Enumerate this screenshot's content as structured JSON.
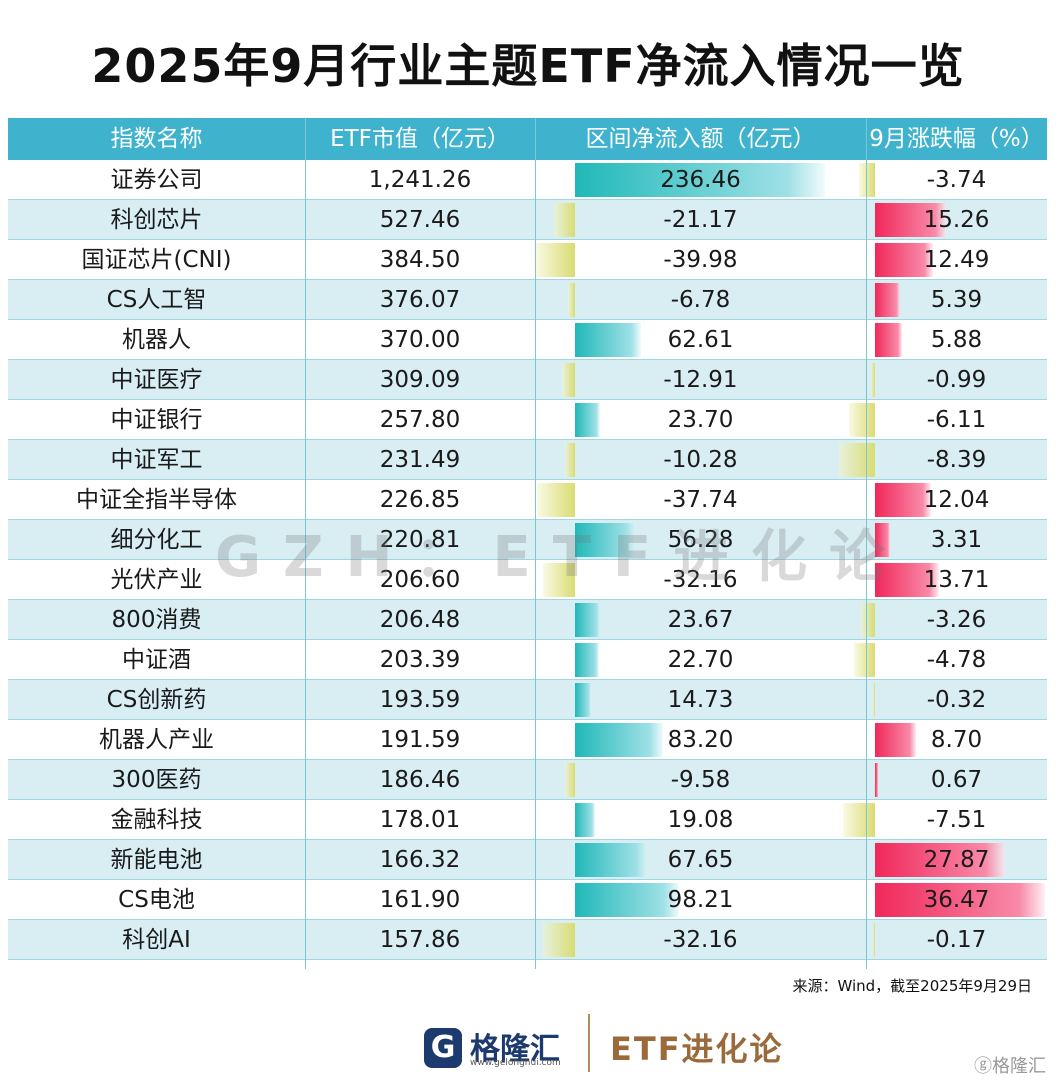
{
  "title": "2025年9月行业主题ETF净流入情况一览",
  "headers": {
    "name": "指数名称",
    "market_cap": "ETF市值（亿元）",
    "net_inflow": "区间净流入额（亿元）",
    "change": "9月涨跌幅（%）"
  },
  "rows": [
    {
      "name": "证券公司",
      "market_cap": "1,241.26",
      "net_inflow": 236.46,
      "change": -3.74
    },
    {
      "name": "科创芯片",
      "market_cap": "527.46",
      "net_inflow": -21.17,
      "change": 15.26
    },
    {
      "name": "国证芯片(CNI)",
      "market_cap": "384.50",
      "net_inflow": -39.98,
      "change": 12.49
    },
    {
      "name": "CS人工智",
      "market_cap": "376.07",
      "net_inflow": -6.78,
      "change": 5.39
    },
    {
      "name": "机器人",
      "market_cap": "370.00",
      "net_inflow": 62.61,
      "change": 5.88
    },
    {
      "name": "中证医疗",
      "market_cap": "309.09",
      "net_inflow": -12.91,
      "change": -0.99
    },
    {
      "name": "中证银行",
      "market_cap": "257.80",
      "net_inflow": 23.7,
      "change": -6.11
    },
    {
      "name": "中证军工",
      "market_cap": "231.49",
      "net_inflow": -10.28,
      "change": -8.39
    },
    {
      "name": "中证全指半导体",
      "market_cap": "226.85",
      "net_inflow": -37.74,
      "change": 12.04
    },
    {
      "name": "细分化工",
      "market_cap": "220.81",
      "net_inflow": 56.28,
      "change": 3.31
    },
    {
      "name": "光伏产业",
      "market_cap": "206.60",
      "net_inflow": -32.16,
      "change": 13.71
    },
    {
      "name": "800消费",
      "market_cap": "206.48",
      "net_inflow": 23.67,
      "change": -3.26
    },
    {
      "name": "中证酒",
      "market_cap": "203.39",
      "net_inflow": 22.7,
      "change": -4.78
    },
    {
      "name": "CS创新药",
      "market_cap": "193.59",
      "net_inflow": 14.73,
      "change": -0.32
    },
    {
      "name": "机器人产业",
      "market_cap": "191.59",
      "net_inflow": 83.2,
      "change": 8.7
    },
    {
      "name": "300医药",
      "market_cap": "186.46",
      "net_inflow": -9.58,
      "change": 0.67
    },
    {
      "name": "金融科技",
      "market_cap": "178.01",
      "net_inflow": 19.08,
      "change": -7.51
    },
    {
      "name": "新能电池",
      "market_cap": "166.32",
      "net_inflow": 67.65,
      "change": 27.87
    },
    {
      "name": "CS电池",
      "market_cap": "161.90",
      "net_inflow": 98.21,
      "change": 36.47
    },
    {
      "name": "科创AI",
      "market_cap": "157.86",
      "net_inflow": -32.16,
      "change": -0.17
    }
  ],
  "watermark": "GZH：ETF进化论",
  "source": "来源：Wind，截至2025年9月29日",
  "footer": {
    "logo_letter": "G",
    "logo_name": "格隆汇",
    "logo_url": "www.gelonghui.com",
    "brand": "ETF进化论",
    "corner_mark": "ⓖ格隆汇"
  },
  "colors": {
    "header_bg": "#3fb3cd",
    "row_alt": "#d8eef3",
    "inflow_pos": "#20b8b8",
    "negative": "#d9dc72",
    "change_pos": "#f0285a"
  }
}
